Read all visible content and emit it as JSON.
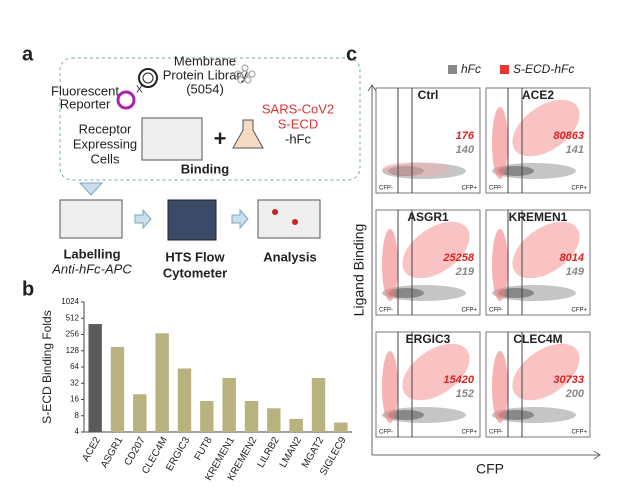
{
  "panel_a": {
    "label": "a",
    "library": [
      "Membrane",
      "Protein Library",
      "(5054)"
    ],
    "reporter": [
      "Fluorescent",
      "Reporter"
    ],
    "cross": "X",
    "cells": [
      "Receptor",
      "Expressing",
      "Cells"
    ],
    "plus": "+",
    "ligand": [
      "SARS-CoV2",
      "S-ECD",
      "-hFc"
    ],
    "binding": "Binding",
    "steps": [
      {
        "title": "Labelling",
        "subtitle": "Anti-hFc-APC"
      },
      {
        "title": "HTS Flow",
        "subtitle": "Cytometer"
      },
      {
        "title": "Analysis"
      }
    ]
  },
  "chart_data": {
    "type": "bar",
    "label": "b",
    "y_label": "S-ECD Binding Folds",
    "categories": [
      "ACE2",
      "ASGR1",
      "CD207",
      "CLEC4M",
      "ERGIC3",
      "FUT8",
      "KREMEN1",
      "KREMEN2",
      "LILRB2",
      "LMAN2",
      "MGAT2",
      "SIGLEC9"
    ],
    "values": [
      400,
      150,
      20,
      270,
      60,
      15,
      40,
      15,
      11,
      7,
      40,
      6
    ],
    "colors": [
      "#5a5a5a",
      "#b8b27f",
      "#b8b27f",
      "#b8b27f",
      "#b8b27f",
      "#b8b27f",
      "#b8b27f",
      "#b8b27f",
      "#b8b27f",
      "#b8b27f",
      "#b8b27f",
      "#b8b27f"
    ],
    "yscale": "log",
    "ylim": [
      4,
      1024
    ],
    "yticks": [
      4,
      8,
      16,
      32,
      64,
      128,
      256,
      512,
      1024
    ]
  },
  "panel_c": {
    "label": "c",
    "legend": [
      "hFc",
      "S-ECD-hFc"
    ],
    "y_label": "Ligand Binding",
    "x_label": "CFP",
    "gate_neg": "CFP-",
    "gate_pos": "CFP+",
    "plots": [
      {
        "name": "Ctrl",
        "red": "176",
        "gray": "140"
      },
      {
        "name": "ACE2",
        "red": "80863",
        "gray": "141"
      },
      {
        "name": "ASGR1",
        "red": "25258",
        "gray": "219"
      },
      {
        "name": "KREMEN1",
        "red": "8014",
        "gray": "149"
      },
      {
        "name": "ERGIC3",
        "red": "15420",
        "gray": "152"
      },
      {
        "name": "CLEC4M",
        "red": "30733",
        "gray": "200"
      }
    ]
  }
}
